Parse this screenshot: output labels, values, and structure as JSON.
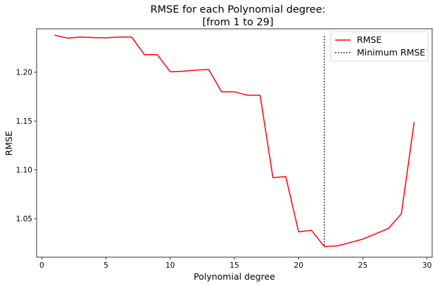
{
  "chart_data": {
    "type": "line",
    "title": "RMSE for each Polynomial degree:",
    "subtitle": "[from 1 to 29]",
    "xlabel": "Polynomial degree",
    "ylabel": "RMSE",
    "xlim": [
      -0.4,
      30.4
    ],
    "ylim": [
      1.0105,
      1.2445
    ],
    "xticks": [
      0,
      5,
      10,
      15,
      20,
      25,
      30
    ],
    "yticks": [
      1.05,
      1.1,
      1.15,
      1.2
    ],
    "ytick_labels": [
      "1.05",
      "1.10",
      "1.15",
      "1.20"
    ],
    "grid": false,
    "legend_position": "top-right",
    "series": [
      {
        "name": "RMSE",
        "color": "#ff0000",
        "style": "solid",
        "x": [
          1,
          2,
          3,
          4,
          5,
          6,
          7,
          8,
          9,
          10,
          11,
          12,
          13,
          14,
          15,
          16,
          17,
          18,
          19,
          20,
          21,
          22,
          23,
          24,
          25,
          26,
          27,
          28,
          29
        ],
        "y": [
          1.238,
          1.235,
          1.236,
          1.2355,
          1.2352,
          1.236,
          1.236,
          1.218,
          1.218,
          1.2005,
          1.201,
          1.2022,
          1.2028,
          1.18,
          1.18,
          1.1765,
          1.1765,
          1.092,
          1.093,
          1.0365,
          1.038,
          1.0215,
          1.022,
          1.0255,
          1.029,
          1.0345,
          1.04,
          1.055,
          1.149
        ]
      }
    ],
    "vline": {
      "name": "Minimum RMSE",
      "color": "#000000",
      "style": "dotted",
      "x": 22,
      "y_range": [
        1.0215,
        1.237
      ]
    }
  }
}
